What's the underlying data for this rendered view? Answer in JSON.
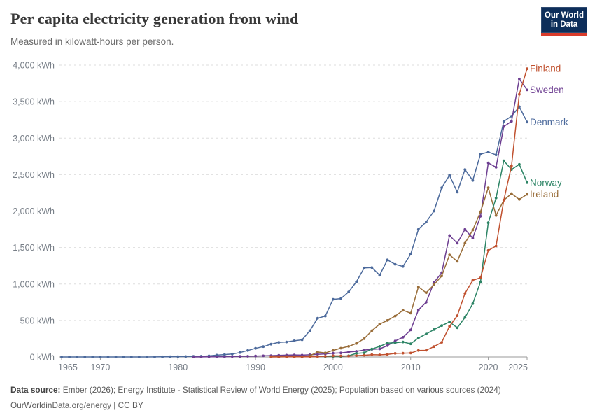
{
  "header": {
    "title": "Per capita electricity generation from wind",
    "subtitle": "Measured in kilowatt-hours per person.",
    "logo": {
      "line1": "Our World",
      "line2": "in Data"
    }
  },
  "footer": {
    "source_label": "Data source:",
    "source_text": " Ember (2026); Energy Institute - Statistical Review of World Energy (2025); Population based on various sources (2024)",
    "license_text": "OurWorldinData.org/energy | CC BY"
  },
  "chart_data": {
    "type": "line",
    "title": "Per capita electricity generation from wind",
    "xlabel": "",
    "ylabel": "kWh per person",
    "x_range": [
      1965,
      2025
    ],
    "ylim": [
      0,
      4000
    ],
    "grid": true,
    "legend_position": "end-of-line-labels-right",
    "colors": {
      "grid": "#dedede",
      "axis": "#9a9a9a",
      "tick_text": "#767d86"
    },
    "y_ticks": [
      {
        "value": 0,
        "label": "0 kWh"
      },
      {
        "value": 500,
        "label": "500 kWh"
      },
      {
        "value": 1000,
        "label": "1,000 kWh"
      },
      {
        "value": 1500,
        "label": "1,500 kWh"
      },
      {
        "value": 2000,
        "label": "2,000 kWh"
      },
      {
        "value": 2500,
        "label": "2,500 kWh"
      },
      {
        "value": 3000,
        "label": "3,000 kWh"
      },
      {
        "value": 3500,
        "label": "3,500 kWh"
      },
      {
        "value": 4000,
        "label": "4,000 kWh"
      }
    ],
    "x_ticks": [
      {
        "value": 1965,
        "label": "1965"
      },
      {
        "value": 1970,
        "label": "1970"
      },
      {
        "value": 1980,
        "label": "1980"
      },
      {
        "value": 1990,
        "label": "1990"
      },
      {
        "value": 2000,
        "label": "2000"
      },
      {
        "value": 2010,
        "label": "2010"
      },
      {
        "value": 2020,
        "label": "2020"
      },
      {
        "value": 2025,
        "label": "2025"
      }
    ],
    "series": [
      {
        "name": "Denmark",
        "color": "#4C6A9C",
        "points": [
          [
            1965,
            0
          ],
          [
            1966,
            0
          ],
          [
            1967,
            0
          ],
          [
            1968,
            0
          ],
          [
            1969,
            0
          ],
          [
            1970,
            0
          ],
          [
            1971,
            0
          ],
          [
            1972,
            0
          ],
          [
            1973,
            0
          ],
          [
            1974,
            0
          ],
          [
            1975,
            0
          ],
          [
            1976,
            0
          ],
          [
            1977,
            1
          ],
          [
            1978,
            2
          ],
          [
            1979,
            3
          ],
          [
            1980,
            5
          ],
          [
            1981,
            6
          ],
          [
            1982,
            8
          ],
          [
            1983,
            10
          ],
          [
            1984,
            14
          ],
          [
            1985,
            25
          ],
          [
            1986,
            33
          ],
          [
            1987,
            40
          ],
          [
            1988,
            60
          ],
          [
            1989,
            88
          ],
          [
            1990,
            118
          ],
          [
            1991,
            142
          ],
          [
            1992,
            176
          ],
          [
            1993,
            200
          ],
          [
            1994,
            205
          ],
          [
            1995,
            222
          ],
          [
            1996,
            235
          ],
          [
            1997,
            360
          ],
          [
            1998,
            530
          ],
          [
            1999,
            560
          ],
          [
            2000,
            790
          ],
          [
            2001,
            800
          ],
          [
            2002,
            890
          ],
          [
            2003,
            1030
          ],
          [
            2004,
            1220
          ],
          [
            2005,
            1225
          ],
          [
            2006,
            1120
          ],
          [
            2007,
            1330
          ],
          [
            2008,
            1270
          ],
          [
            2009,
            1240
          ],
          [
            2010,
            1410
          ],
          [
            2011,
            1750
          ],
          [
            2012,
            1850
          ],
          [
            2013,
            2000
          ],
          [
            2014,
            2320
          ],
          [
            2015,
            2490
          ],
          [
            2016,
            2260
          ],
          [
            2017,
            2570
          ],
          [
            2018,
            2420
          ],
          [
            2019,
            2780
          ],
          [
            2020,
            2810
          ],
          [
            2021,
            2770
          ],
          [
            2022,
            3230
          ],
          [
            2023,
            3300
          ],
          [
            2024,
            3430
          ],
          [
            2025,
            3220
          ]
        ]
      },
      {
        "name": "Sweden",
        "color": "#6D3E91",
        "points": [
          [
            1982,
            0
          ],
          [
            1983,
            1
          ],
          [
            1984,
            2
          ],
          [
            1985,
            3
          ],
          [
            1986,
            4
          ],
          [
            1987,
            6
          ],
          [
            1988,
            8
          ],
          [
            1989,
            10
          ],
          [
            1990,
            12
          ],
          [
            1991,
            15
          ],
          [
            1992,
            18
          ],
          [
            1993,
            22
          ],
          [
            1994,
            25
          ],
          [
            1995,
            28
          ],
          [
            1996,
            25
          ],
          [
            1997,
            30
          ],
          [
            1998,
            36
          ],
          [
            1999,
            42
          ],
          [
            2000,
            52
          ],
          [
            2001,
            55
          ],
          [
            2002,
            68
          ],
          [
            2003,
            77
          ],
          [
            2004,
            95
          ],
          [
            2005,
            105
          ],
          [
            2006,
            110
          ],
          [
            2007,
            155
          ],
          [
            2008,
            220
          ],
          [
            2009,
            270
          ],
          [
            2010,
            370
          ],
          [
            2011,
            645
          ],
          [
            2012,
            750
          ],
          [
            2013,
            1020
          ],
          [
            2014,
            1155
          ],
          [
            2015,
            1665
          ],
          [
            2016,
            1560
          ],
          [
            2017,
            1750
          ],
          [
            2018,
            1630
          ],
          [
            2019,
            1930
          ],
          [
            2020,
            2660
          ],
          [
            2021,
            2600
          ],
          [
            2022,
            3160
          ],
          [
            2023,
            3230
          ],
          [
            2024,
            3810
          ],
          [
            2025,
            3660
          ]
        ]
      },
      {
        "name": "Ireland",
        "color": "#996D39",
        "points": [
          [
            1992,
            4
          ],
          [
            1993,
            5
          ],
          [
            1994,
            6
          ],
          [
            1995,
            5
          ],
          [
            1996,
            4
          ],
          [
            1997,
            15
          ],
          [
            1998,
            68
          ],
          [
            1999,
            55
          ],
          [
            2000,
            90
          ],
          [
            2001,
            120
          ],
          [
            2002,
            145
          ],
          [
            2003,
            185
          ],
          [
            2004,
            250
          ],
          [
            2005,
            360
          ],
          [
            2006,
            450
          ],
          [
            2007,
            500
          ],
          [
            2008,
            560
          ],
          [
            2009,
            640
          ],
          [
            2010,
            600
          ],
          [
            2011,
            960
          ],
          [
            2012,
            880
          ],
          [
            2013,
            990
          ],
          [
            2014,
            1110
          ],
          [
            2015,
            1400
          ],
          [
            2016,
            1310
          ],
          [
            2017,
            1560
          ],
          [
            2018,
            1740
          ],
          [
            2019,
            1990
          ],
          [
            2020,
            2320
          ],
          [
            2021,
            1940
          ],
          [
            2022,
            2150
          ],
          [
            2023,
            2240
          ],
          [
            2024,
            2160
          ],
          [
            2025,
            2230
          ]
        ]
      },
      {
        "name": "Norway",
        "color": "#2C8465",
        "points": [
          [
            1993,
            2
          ],
          [
            1994,
            3
          ],
          [
            1995,
            4
          ],
          [
            1996,
            4
          ],
          [
            1997,
            5
          ],
          [
            1998,
            6
          ],
          [
            1999,
            6
          ],
          [
            2000,
            7
          ],
          [
            2001,
            6
          ],
          [
            2002,
            16
          ],
          [
            2003,
            49
          ],
          [
            2004,
            57
          ],
          [
            2005,
            108
          ],
          [
            2006,
            145
          ],
          [
            2007,
            190
          ],
          [
            2008,
            195
          ],
          [
            2009,
            205
          ],
          [
            2010,
            180
          ],
          [
            2011,
            260
          ],
          [
            2012,
            315
          ],
          [
            2013,
            375
          ],
          [
            2014,
            430
          ],
          [
            2015,
            480
          ],
          [
            2016,
            400
          ],
          [
            2017,
            540
          ],
          [
            2018,
            730
          ],
          [
            2019,
            1030
          ],
          [
            2020,
            1840
          ],
          [
            2021,
            2180
          ],
          [
            2022,
            2690
          ],
          [
            2023,
            2570
          ],
          [
            2024,
            2640
          ],
          [
            2025,
            2390
          ]
        ]
      },
      {
        "name": "Finland",
        "color": "#C0512F",
        "points": [
          [
            1992,
            0
          ],
          [
            1993,
            1
          ],
          [
            1994,
            2
          ],
          [
            1995,
            2
          ],
          [
            1996,
            2
          ],
          [
            1997,
            3
          ],
          [
            1998,
            5
          ],
          [
            1999,
            10
          ],
          [
            2000,
            15
          ],
          [
            2001,
            14
          ],
          [
            2002,
            12
          ],
          [
            2003,
            18
          ],
          [
            2004,
            23
          ],
          [
            2005,
            32
          ],
          [
            2006,
            29
          ],
          [
            2007,
            35
          ],
          [
            2008,
            49
          ],
          [
            2009,
            52
          ],
          [
            2010,
            54
          ],
          [
            2011,
            89
          ],
          [
            2012,
            91
          ],
          [
            2013,
            142
          ],
          [
            2014,
            200
          ],
          [
            2015,
            420
          ],
          [
            2016,
            565
          ],
          [
            2017,
            870
          ],
          [
            2018,
            1050
          ],
          [
            2019,
            1085
          ],
          [
            2020,
            1460
          ],
          [
            2021,
            1520
          ],
          [
            2022,
            2150
          ],
          [
            2023,
            2620
          ],
          [
            2024,
            3600
          ],
          [
            2025,
            3950
          ]
        ]
      }
    ]
  }
}
